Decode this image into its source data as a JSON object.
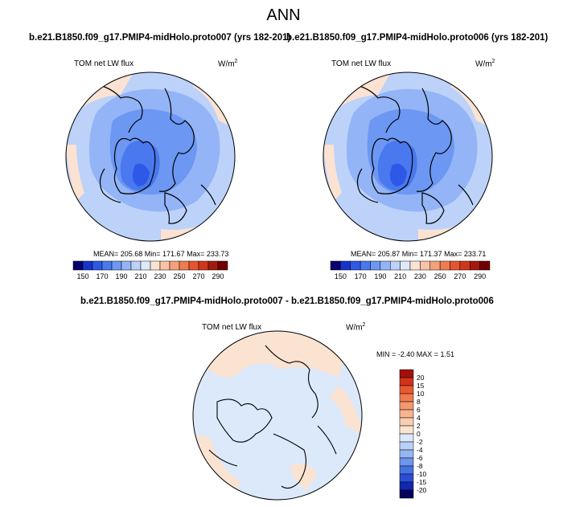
{
  "figure_title": "ANN",
  "panels": [
    {
      "title": "b.e21.B1850.f09_g17.PMIP4-midHolo.proto007 (yrs 182-201)",
      "variable": "TOM net LW flux",
      "units": "W/m",
      "units_exp": "2",
      "stats": "MEAN= 205.68  Min= 171.67  Max= 233.73"
    },
    {
      "title": "b.e21.B1850.f09_g17.PMIP4-midHolo.proto006 (yrs 182-201)",
      "variable": "TOM net LW flux",
      "units": "W/m",
      "units_exp": "2",
      "stats": "MEAN= 205.87  Min= 171.37  Max= 233.71"
    }
  ],
  "colorbar_main": {
    "labels": [
      "150",
      "170",
      "190",
      "210",
      "230",
      "250",
      "270",
      "290"
    ],
    "colors": [
      "#08006e",
      "#1635c8",
      "#2e59e6",
      "#4a78ee",
      "#6c97f2",
      "#93b4f6",
      "#bcd2f9",
      "#dde9fb",
      "#fbe2d2",
      "#f8c3a6",
      "#f4a079",
      "#ef7c51",
      "#e6552d",
      "#d0361a",
      "#a51a0e",
      "#720000"
    ]
  },
  "diff_panel": {
    "title": "b.e21.B1850.f09_g17.PMIP4-midHolo.proto007 - b.e21.B1850.f09_g17.PMIP4-midHolo.proto006",
    "variable": "TOM net LW flux",
    "units": "W/m",
    "units_exp": "2",
    "stats": "MIN =  -2.40 MAX =   1.51"
  },
  "colorbar_diff": {
    "labels": [
      "20",
      "15",
      "10",
      "8",
      "6",
      "4",
      "2",
      "0",
      "-2",
      "-4",
      "-6",
      "-8",
      "-10",
      "-15",
      "-20"
    ],
    "colors": [
      "#a31008",
      "#d0321a",
      "#e85a2e",
      "#f07a4e",
      "#f4996f",
      "#f7b48f",
      "#f9cdb0",
      "#fbe3d2",
      "#dbe9fb",
      "#bad0f7",
      "#95b5f3",
      "#6e95ec",
      "#4673e3",
      "#2a4fd6",
      "#1028b0",
      "#06005e"
    ]
  }
}
